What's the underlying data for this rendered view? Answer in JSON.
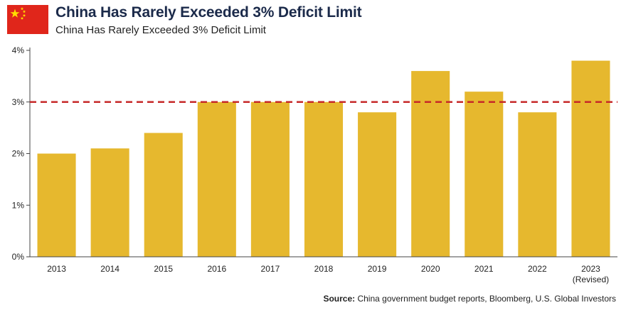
{
  "header": {
    "title": "China Has Rarely Exceeded 3% Deficit Limit",
    "subtitle": "China Has Rarely Exceeded 3% Deficit Limit",
    "flag_icon": "china-flag-icon"
  },
  "source": {
    "label": "Source:",
    "text": "China government budget reports, Bloomberg, U.S. Global Investors"
  },
  "colors": {
    "bar": "#e6b82e",
    "reference_line": "#c62828",
    "axis": "#444444"
  },
  "chart_data": {
    "type": "bar",
    "title": "China Has Rarely Exceeded 3% Deficit Limit",
    "subtitle": "China Has Rarely Exceeded 3% Deficit Limit",
    "categories": [
      "2013",
      "2014",
      "2015",
      "2016",
      "2017",
      "2018",
      "2019",
      "2020",
      "2021",
      "2022",
      "2023"
    ],
    "category_sublabels": [
      "",
      "",
      "",
      "",
      "",
      "",
      "",
      "",
      "",
      "",
      "(Revised)"
    ],
    "values": [
      2.0,
      2.1,
      2.4,
      3.0,
      3.0,
      3.0,
      2.8,
      3.6,
      3.2,
      2.8,
      3.8
    ],
    "value_unit": "%",
    "ylim": [
      0,
      4
    ],
    "yticks": [
      "0%",
      "1%",
      "2%",
      "3%",
      "4%"
    ],
    "reference_line": {
      "value": 3,
      "style": "dashed",
      "color": "#c62828"
    },
    "grid": false,
    "legend": "none"
  }
}
